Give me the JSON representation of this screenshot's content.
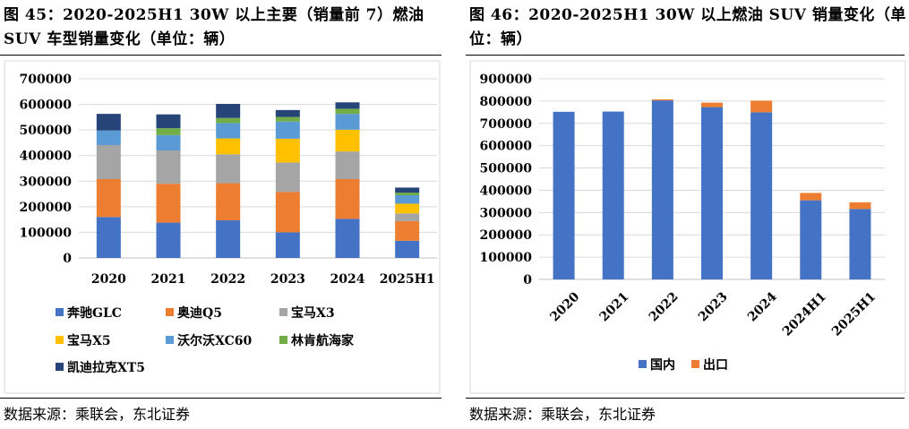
{
  "left": {
    "title": "图 45：2020-2025H1 30W 以上主要（销量前 7）燃油 SUV 车型销量变化（单位：辆）",
    "source": "数据来源：乘联会，东北证券"
  },
  "right": {
    "title": "图 46：2020-2025H1 30W 以上燃油 SUV 销量变化（单位：辆）",
    "source": "数据来源：乘联会，东北证券"
  },
  "chart_data": [
    {
      "type": "bar",
      "stacked": true,
      "title": "图 45：2020-2025H1 30W 以上主要（销量前 7）燃油 SUV 车型销量变化（单位：辆）",
      "categories": [
        "2020",
        "2021",
        "2022",
        "2023",
        "2024",
        "2025H1"
      ],
      "ylim": [
        0,
        700000
      ],
      "yticks": [
        0,
        100000,
        200000,
        300000,
        400000,
        500000,
        600000,
        700000
      ],
      "grid": true,
      "legend_position": "bottom",
      "series": [
        {
          "name": "奔驰GLC",
          "color": "#4472C4",
          "values": [
            160000,
            138000,
            147000,
            100000,
            153000,
            67000
          ]
        },
        {
          "name": "奥迪Q5",
          "color": "#ED7D31",
          "values": [
            148000,
            152000,
            145000,
            158000,
            155000,
            77000
          ]
        },
        {
          "name": "宝马X3",
          "color": "#A5A5A5",
          "values": [
            133000,
            130000,
            113000,
            115000,
            108000,
            30000
          ]
        },
        {
          "name": "宝马X5",
          "color": "#FFC000",
          "values": [
            0,
            0,
            62000,
            93000,
            85000,
            38000
          ]
        },
        {
          "name": "沃尔沃XC60",
          "color": "#5B9BD5",
          "values": [
            57000,
            60000,
            60000,
            67000,
            62000,
            33000
          ]
        },
        {
          "name": "林肯航海家",
          "color": "#70AD47",
          "values": [
            0,
            27000,
            20000,
            18000,
            20000,
            10000
          ]
        },
        {
          "name": "凯迪拉克XT5",
          "color": "#264478",
          "values": [
            65000,
            54000,
            55000,
            27000,
            25000,
            20000
          ]
        }
      ]
    },
    {
      "type": "bar",
      "stacked": true,
      "title": "图 46：2020-2025H1 30W 以上燃油 SUV 销量变化（单位：辆）",
      "categories": [
        "2020",
        "2021",
        "2022",
        "2023",
        "2024",
        "2024H1",
        "2025H1"
      ],
      "ylim": [
        0,
        900000
      ],
      "yticks": [
        0,
        100000,
        200000,
        300000,
        400000,
        500000,
        600000,
        700000,
        800000,
        900000
      ],
      "grid": true,
      "legend_position": "bottom",
      "series": [
        {
          "name": "国内",
          "color": "#4472C4",
          "values": [
            752000,
            753000,
            803000,
            773000,
            750000,
            355000,
            316000
          ]
        },
        {
          "name": "出口",
          "color": "#ED7D31",
          "values": [
            0,
            0,
            5000,
            20000,
            52000,
            33000,
            30000
          ]
        }
      ]
    }
  ]
}
